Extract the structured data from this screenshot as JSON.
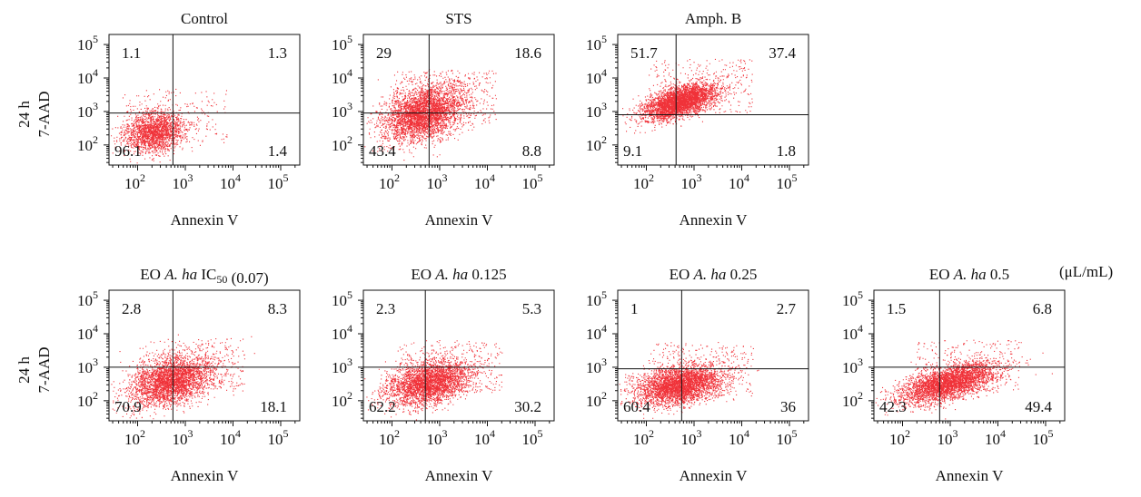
{
  "figure": {
    "row_labels": [
      {
        "time": "24 h",
        "axis": "7-AAD"
      },
      {
        "time": "24 h",
        "axis": "7-AAD"
      }
    ],
    "unit_label": "(μL/mL)"
  },
  "chart_data": [
    {
      "type": "scatter",
      "title": "Control",
      "title_parts": [
        {
          "t": "Control",
          "i": false
        }
      ],
      "xlabel": "Annexin V",
      "ylabel": "7-AAD",
      "scale": "log",
      "xticks": [
        "2",
        "3",
        "4",
        "5"
      ],
      "yticks": [
        "2",
        "3",
        "4",
        "5"
      ],
      "quadrants": {
        "ul": "1.1",
        "ur": "1.3",
        "ll": "96.1",
        "lr": "1.4"
      },
      "gate": {
        "x": 550,
        "y": 900
      },
      "cloud": {
        "x": 220,
        "y": 250,
        "sx": 0.32,
        "sy": 0.3,
        "n": 2200,
        "tilt": 0.15
      },
      "color": "#ee1c24"
    },
    {
      "type": "scatter",
      "title": "STS",
      "title_parts": [
        {
          "t": "STS",
          "i": false
        }
      ],
      "xlabel": "Annexin V",
      "ylabel": "7-AAD",
      "scale": "log",
      "xticks": [
        "2",
        "3",
        "4",
        "5"
      ],
      "yticks": [
        "2",
        "3",
        "4",
        "5"
      ],
      "quadrants": {
        "ul": "29",
        "ur": "18.6",
        "ll": "43.4",
        "lr": "8.8"
      },
      "gate": {
        "x": 600,
        "y": 900
      },
      "cloud": {
        "x": 450,
        "y": 900,
        "sx": 0.42,
        "sy": 0.38,
        "n": 4000,
        "tilt": 0.35
      },
      "color": "#ee1c24"
    },
    {
      "type": "scatter",
      "title": "Amph. B",
      "title_parts": [
        {
          "t": "Amph. B",
          "i": false
        }
      ],
      "xlabel": "Annexin V",
      "ylabel": "7-AAD",
      "scale": "log",
      "xticks": [
        "2",
        "3",
        "4",
        "5"
      ],
      "yticks": [
        "2",
        "3",
        "4",
        "5"
      ],
      "quadrants": {
        "ul": "51.7",
        "ur": "37.4",
        "ll": "9.1",
        "lr": "1.8"
      },
      "gate": {
        "x": 420,
        "y": 800
      },
      "cloud": {
        "x": 500,
        "y": 2000,
        "sx": 0.38,
        "sy": 0.22,
        "n": 4000,
        "tilt": 0.4
      },
      "color": "#ee1c24"
    },
    {
      "type": "scatter",
      "title": "EO A. ha IC50 (0.07)",
      "title_parts": [
        {
          "t": "EO ",
          "i": false
        },
        {
          "t": "A. ha",
          "i": true
        },
        {
          "t": " IC",
          "i": false
        },
        {
          "t": "50",
          "i": false,
          "sub": true
        },
        {
          "t": " (0.07)",
          "i": false
        }
      ],
      "xlabel": "Annexin V",
      "ylabel": "7-AAD",
      "scale": "log",
      "xticks": [
        "2",
        "3",
        "4",
        "5"
      ],
      "yticks": [
        "2",
        "3",
        "4",
        "5"
      ],
      "quadrants": {
        "ul": "2.8",
        "ur": "8.3",
        "ll": "70.9",
        "lr": "18.1"
      },
      "gate": {
        "x": 550,
        "y": 1000
      },
      "cloud": {
        "x": 500,
        "y": 400,
        "sx": 0.45,
        "sy": 0.35,
        "n": 3500,
        "tilt": 0.3
      },
      "color": "#ee1c24"
    },
    {
      "type": "scatter",
      "title": "EO A. ha 0.125",
      "title_parts": [
        {
          "t": "EO ",
          "i": false
        },
        {
          "t": "A. ha",
          "i": true
        },
        {
          "t": " 0.125",
          "i": false
        }
      ],
      "xlabel": "Annexin V",
      "ylabel": "7-AAD",
      "scale": "log",
      "xticks": [
        "2",
        "3",
        "4",
        "5"
      ],
      "yticks": [
        "2",
        "3",
        "4",
        "5"
      ],
      "quadrants": {
        "ul": "2.3",
        "ur": "5.3",
        "ll": "62.2",
        "lr": "30.2"
      },
      "gate": {
        "x": 500,
        "y": 1000
      },
      "cloud": {
        "x": 600,
        "y": 350,
        "sx": 0.45,
        "sy": 0.32,
        "n": 3500,
        "tilt": 0.25
      },
      "color": "#ee1c24"
    },
    {
      "type": "scatter",
      "title": "EO A. ha 0.25",
      "title_parts": [
        {
          "t": "EO ",
          "i": false
        },
        {
          "t": "A. ha",
          "i": true
        },
        {
          "t": " 0.25",
          "i": false
        }
      ],
      "xlabel": "Annexin V",
      "ylabel": "7-AAD",
      "scale": "log",
      "xticks": [
        "2",
        "3",
        "4",
        "5"
      ],
      "yticks": [
        "2",
        "3",
        "4",
        "5"
      ],
      "quadrants": {
        "ul": "1",
        "ur": "2.7",
        "ll": "60.4",
        "lr": "36"
      },
      "gate": {
        "x": 550,
        "y": 900
      },
      "cloud": {
        "x": 500,
        "y": 300,
        "sx": 0.45,
        "sy": 0.28,
        "n": 3800,
        "tilt": 0.2
      },
      "color": "#ee1c24"
    },
    {
      "type": "scatter",
      "title": "EO A. ha 0.5",
      "title_parts": [
        {
          "t": "EO ",
          "i": false
        },
        {
          "t": "A. ha",
          "i": true
        },
        {
          "t": " 0.5",
          "i": false
        }
      ],
      "xlabel": "Annexin V",
      "ylabel": "7-AAD",
      "scale": "log",
      "xticks": [
        "2",
        "3",
        "4",
        "5"
      ],
      "yticks": [
        "2",
        "3",
        "4",
        "5"
      ],
      "quadrants": {
        "ul": "1.5",
        "ur": "6.8",
        "ll": "42.3",
        "lr": "49.4"
      },
      "gate": {
        "x": 600,
        "y": 1000
      },
      "cloud": {
        "x": 900,
        "y": 350,
        "sx": 0.5,
        "sy": 0.25,
        "n": 3800,
        "tilt": 0.35
      },
      "color": "#ee1c24"
    }
  ]
}
